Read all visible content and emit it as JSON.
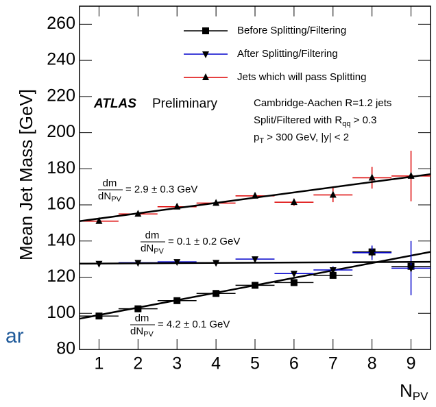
{
  "chart_data": {
    "type": "errorbar",
    "ylabel": "Mean Jet Mass [GeV]",
    "xlabel": {
      "main": "N",
      "sub": "PV"
    },
    "stray_text": "ar",
    "x": [
      1,
      2,
      3,
      4,
      5,
      6,
      7,
      8,
      9
    ],
    "x_halfwidth": 0.5,
    "xlim": [
      0.5,
      9.5
    ],
    "ylim": [
      80,
      270
    ],
    "xticks": [
      1,
      2,
      3,
      4,
      5,
      6,
      7,
      8,
      9
    ],
    "yticks": [
      80,
      100,
      120,
      140,
      160,
      180,
      200,
      220,
      240,
      260
    ],
    "fit_x": [
      0.5,
      9.5
    ],
    "series": [
      {
        "name": "Before Splitting/Filtering",
        "color": "#000000",
        "marker": "square",
        "values": [
          98.5,
          102.5,
          107,
          111,
          115.5,
          117,
          121,
          134,
          126
        ],
        "errors": [
          0.5,
          0.5,
          0.5,
          0.5,
          0.7,
          1,
          1.5,
          3,
          3
        ],
        "fit": [
          97,
          134
        ]
      },
      {
        "name": "After Splitting/Filtering",
        "color": "#0000cc",
        "marker": "down",
        "values": [
          127.5,
          128,
          128.5,
          128,
          130,
          122,
          124,
          133.5,
          125
        ],
        "errors": [
          0.5,
          0.5,
          0.5,
          0.5,
          0.7,
          1,
          2,
          4,
          15
        ],
        "fit": [
          127.5,
          128.5
        ]
      },
      {
        "name": "Jets which will pass Splitting",
        "color": "#dd0000",
        "marker": "up",
        "values": [
          151,
          155,
          159,
          161,
          165,
          161.5,
          165.5,
          175,
          176
        ],
        "errors": [
          0.5,
          0.5,
          0.5,
          0.7,
          1,
          2,
          4,
          6,
          14
        ],
        "fit": [
          151,
          177
        ]
      }
    ],
    "fit_labels": [
      {
        "numerator": "dm",
        "denominator": "dN",
        "denominator_sub": "PV",
        "text": "= 2.9 ± 0.3 GeV"
      },
      {
        "numerator": "dm",
        "denominator": "dN",
        "denominator_sub": "PV",
        "text": "= 0.1 ± 0.2 GeV"
      },
      {
        "numerator": "dm",
        "denominator": "dN",
        "denominator_sub": "PV",
        "text": "= 4.2 ± 0.1 GeV"
      }
    ],
    "experiment": "ATLAS",
    "status": "Preliminary",
    "info": [
      {
        "text": "Cambridge-Aachen R=1.2 jets"
      },
      {
        "text": "Split/Filtered with R",
        "sub": "qq",
        "after": " > 0.3"
      },
      {
        "text": "p",
        "sub": "T",
        "after": " > 300 GeV, |y| < 2"
      }
    ]
  }
}
